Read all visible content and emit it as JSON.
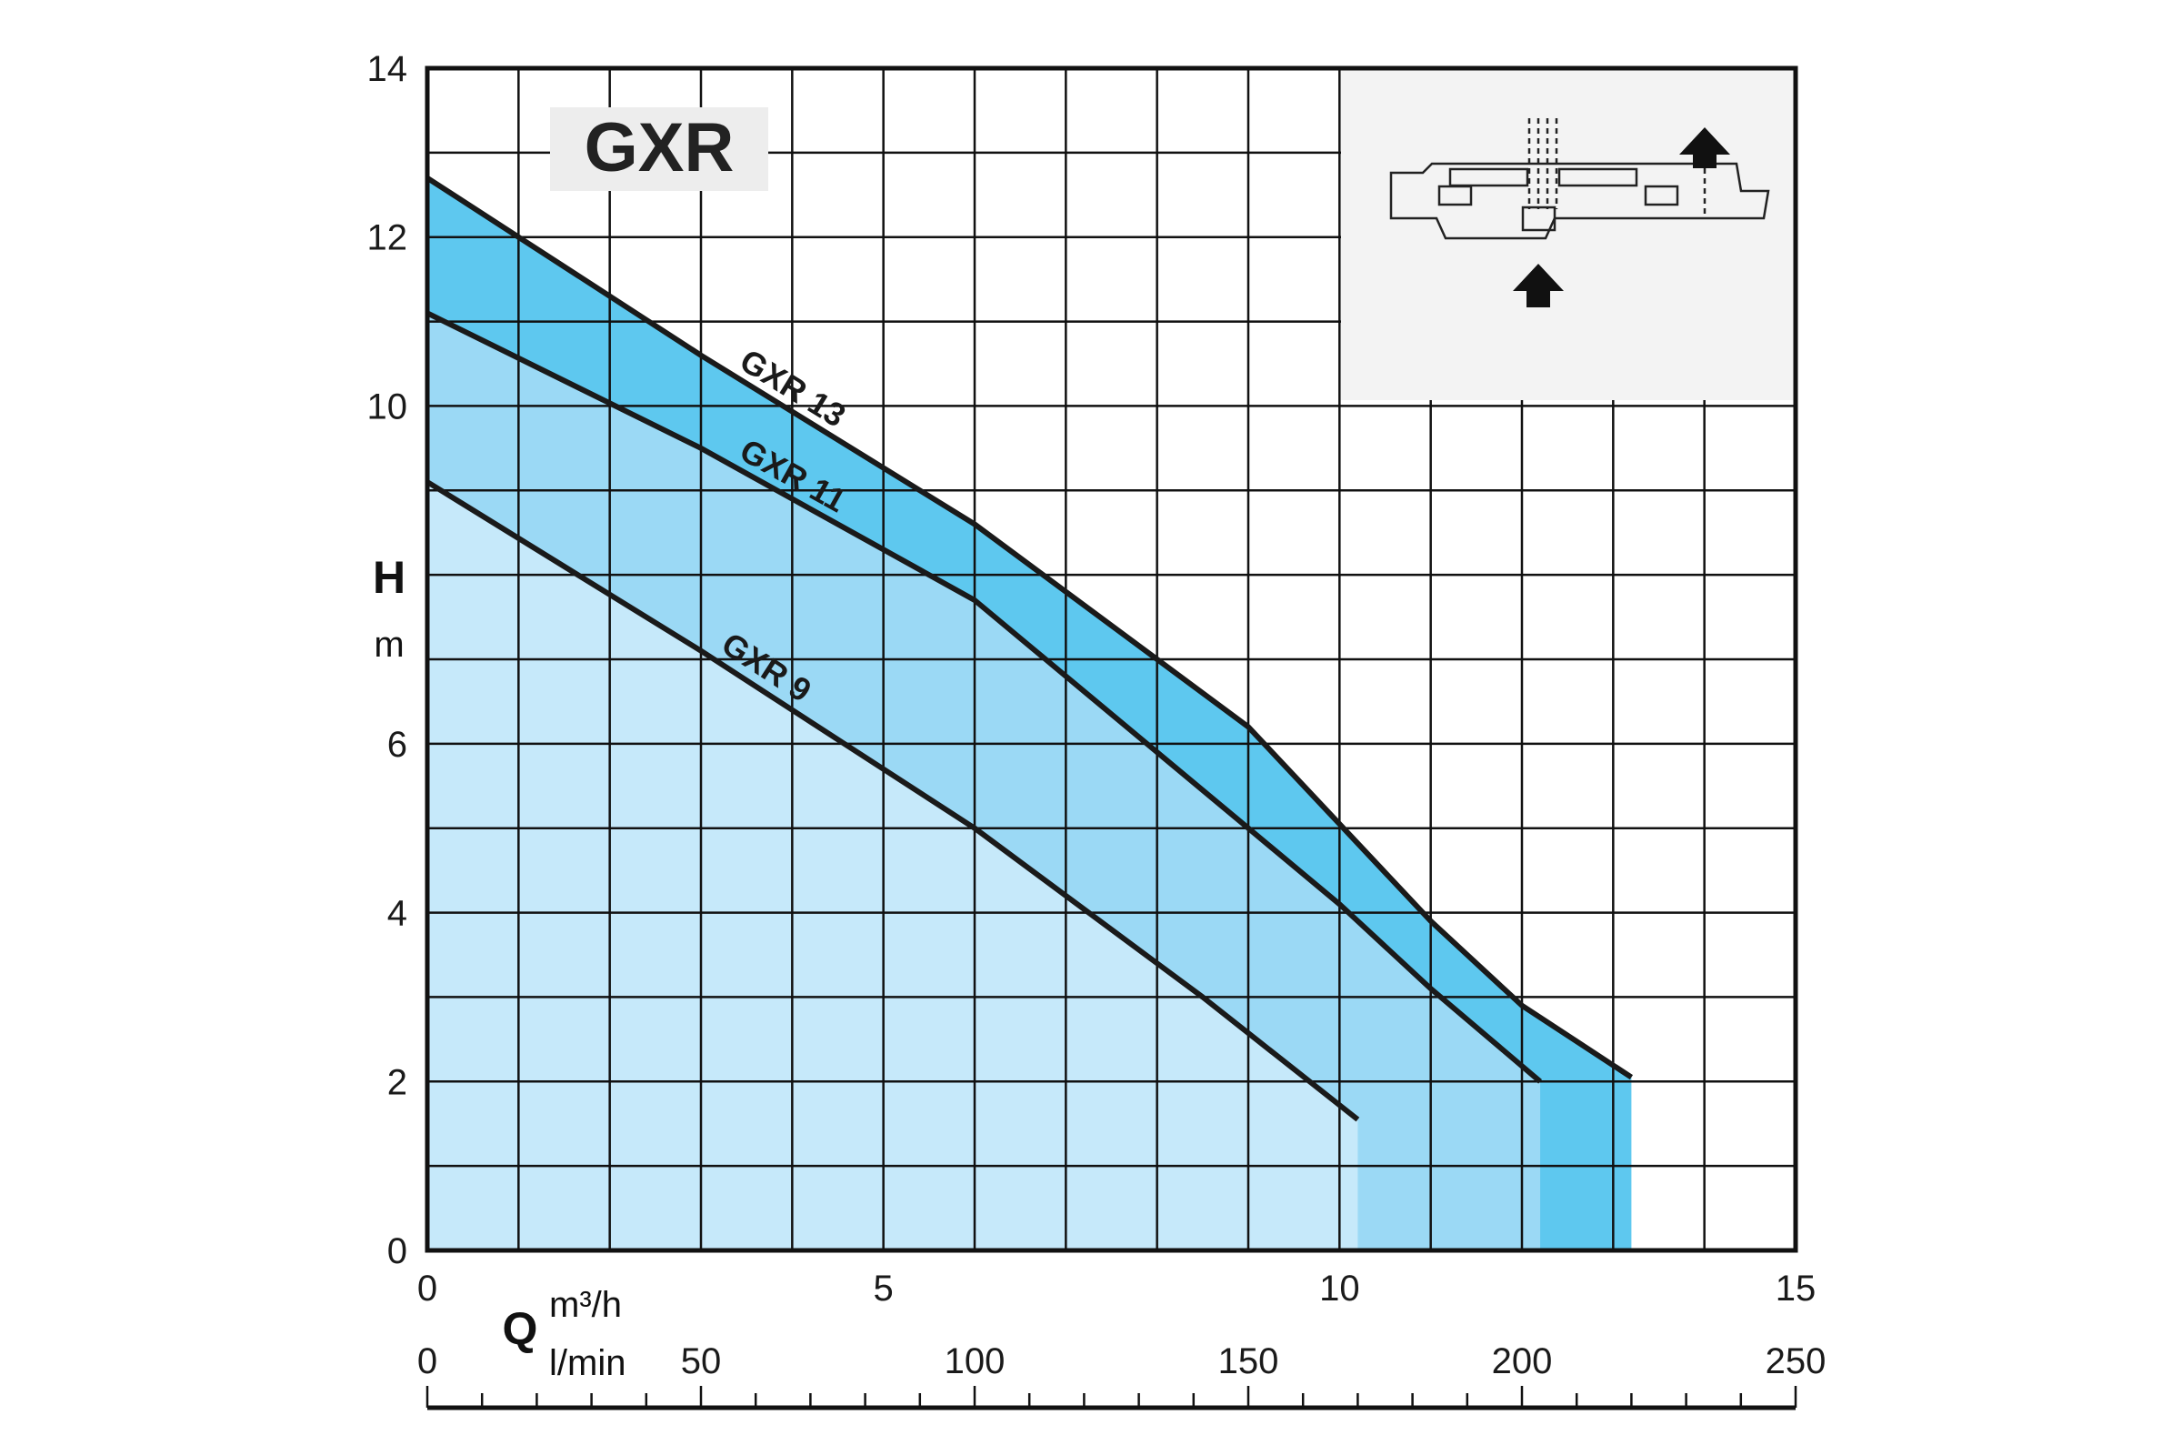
{
  "chart_data": {
    "type": "line",
    "title": "GXR",
    "y_axis": {
      "symbol": "H",
      "unit": "m",
      "range": [
        0,
        14
      ],
      "ticks": [
        0,
        2,
        4,
        6,
        8,
        10,
        12,
        14
      ],
      "tick_labels": [
        "0",
        "2",
        "4",
        "6",
        "",
        "10",
        "12",
        "14"
      ]
    },
    "x_axis": {
      "symbol": "Q",
      "unit": "m³/h",
      "range": [
        0,
        15
      ],
      "ticks": [
        0,
        5,
        10,
        15
      ]
    },
    "x_axis_secondary": {
      "unit": "l/min",
      "range": [
        0,
        250
      ],
      "ticks": [
        0,
        50,
        100,
        150,
        200,
        250
      ]
    },
    "grid": true,
    "series": [
      {
        "name": "GXR 13",
        "color": "#5ec8ef",
        "points": [
          [
            0,
            12.7
          ],
          [
            3,
            10.6
          ],
          [
            6,
            8.6
          ],
          [
            9,
            6.2
          ],
          [
            11,
            3.9
          ],
          [
            12,
            2.9
          ],
          [
            13.2,
            2.05
          ]
        ]
      },
      {
        "name": "GXR 11",
        "color": "#9bd9f5",
        "points": [
          [
            0,
            11.1
          ],
          [
            3,
            9.5
          ],
          [
            6,
            7.7
          ],
          [
            9,
            5.0
          ],
          [
            10,
            4.1
          ],
          [
            11,
            3.1
          ],
          [
            12.2,
            2.0
          ]
        ]
      },
      {
        "name": "GXR 9",
        "color": "#c6e9fa",
        "points": [
          [
            0,
            9.1
          ],
          [
            3,
            7.1
          ],
          [
            6,
            5.0
          ],
          [
            8.5,
            3.0
          ],
          [
            10.2,
            1.55
          ]
        ]
      }
    ],
    "inset": {
      "description": "pump cross-section diagram with flow arrows"
    }
  }
}
